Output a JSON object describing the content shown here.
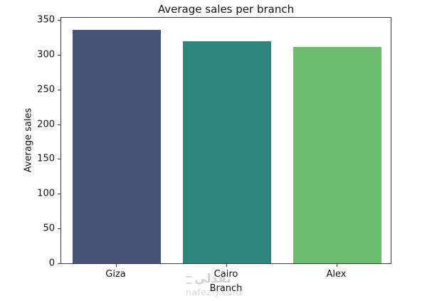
{
  "watermark": {
    "brand_arabic": "نفذلي",
    "site": "nafezly.com"
  },
  "chart_data": {
    "type": "bar",
    "title": "Average sales per branch",
    "xlabel": "Branch",
    "ylabel": "Average sales",
    "categories": [
      "Giza",
      "Cairo",
      "Alex"
    ],
    "values": [
      336,
      319,
      311
    ],
    "ylim": [
      0,
      353
    ],
    "yticks": [
      0,
      50,
      100,
      150,
      200,
      250,
      300,
      350
    ],
    "grid": false,
    "legend": "none",
    "bar_colors": [
      "#46547a",
      "#2f857d",
      "#6abd6e"
    ],
    "axis_color": "#3a3a3a",
    "background": "#ffffff"
  }
}
